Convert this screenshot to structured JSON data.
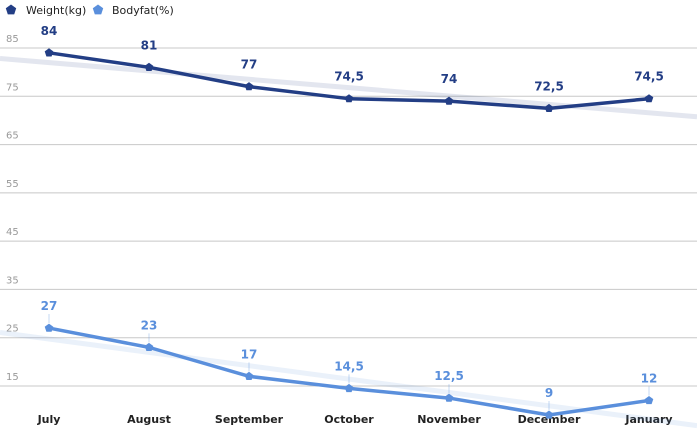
{
  "chart_data": {
    "type": "line",
    "title": "",
    "xlabel": "",
    "ylabel": "",
    "categories": [
      "July",
      "August",
      "September",
      "October",
      "November",
      "December",
      "January"
    ],
    "y_ticks": [
      "15",
      "25",
      "35",
      "45",
      "55",
      "65",
      "75",
      "85"
    ],
    "ylim": [
      10,
      90
    ],
    "grid": true,
    "legend_position": "top-left",
    "series": [
      {
        "name": "Weight(kg)",
        "values": [
          84,
          81,
          77,
          74.5,
          74,
          72.5,
          74.5
        ],
        "labels": [
          "84",
          "81",
          "77",
          "74,5",
          "74",
          "72,5",
          "74,5"
        ],
        "color": "#233e85",
        "marker": "pentagon"
      },
      {
        "name": "Bodyfat(%)",
        "values": [
          27,
          23,
          17,
          14.5,
          12.5,
          9,
          12
        ],
        "labels": [
          "27",
          "23",
          "17",
          "14,5",
          "12,5",
          "9",
          "12"
        ],
        "color": "#5a8fdc",
        "marker": "pentagon"
      }
    ]
  }
}
